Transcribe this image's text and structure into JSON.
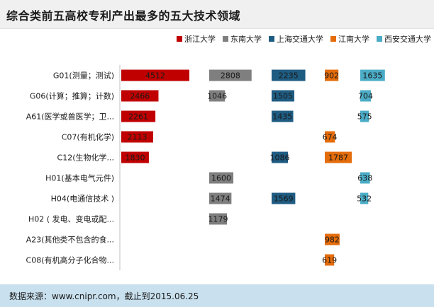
{
  "title": "综合类前五高校专利产出最多的五大技术领域",
  "source": "数据来源：www.cnipr.com，截止到2015.06.25",
  "chart_data": {
    "type": "bar",
    "categories": [
      "G01(测量；测试)",
      "G06(计算；推算；计数)",
      "A61(医学或兽医学；卫...",
      "C07(有机化学)",
      "C12(生物化学...",
      "H01(基本电气元件)",
      "H04(电通信技术 )",
      "H02 ( 发电、变电或配...",
      "A23(其他类不包含的食...",
      "C08(有机高分子化合物..."
    ],
    "series": [
      {
        "name": "浙江大学",
        "color": "#c00000",
        "values": [
          4512,
          2466,
          2261,
          2113,
          1830,
          null,
          null,
          null,
          null,
          null
        ]
      },
      {
        "name": "东南大学",
        "color": "#7f7f7f",
        "values": [
          2808,
          1046,
          null,
          null,
          null,
          1600,
          1474,
          1179,
          null,
          null
        ]
      },
      {
        "name": "上海交通大学",
        "color": "#1f5c82",
        "values": [
          2235,
          1505,
          1435,
          null,
          1086,
          null,
          1569,
          null,
          null,
          null
        ]
      },
      {
        "name": "江南大学",
        "color": "#e46c0a",
        "values": [
          902,
          null,
          null,
          674,
          1787,
          null,
          null,
          null,
          982,
          619
        ]
      },
      {
        "name": "西安交通大学",
        "color": "#4bacc6",
        "values": [
          1635,
          704,
          575,
          null,
          null,
          638,
          532,
          null,
          null,
          null
        ]
      }
    ],
    "legend_position": "top-right"
  }
}
